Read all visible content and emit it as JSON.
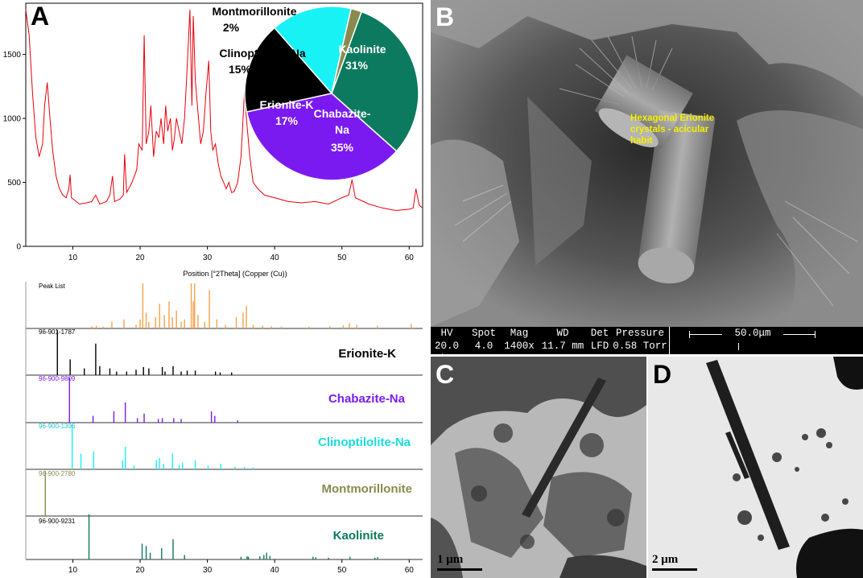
{
  "panels": {
    "a": "A",
    "b": "B",
    "c": "C",
    "d": "D"
  },
  "xrd": {
    "x_axis_label": "Position [°2Theta] (Copper (Cu))",
    "x_ticks": [
      10,
      20,
      30,
      40,
      50,
      60
    ],
    "y_ticks": [
      0,
      500,
      1000,
      1500
    ],
    "x_range": [
      3,
      62
    ],
    "y_range": [
      0,
      1900
    ],
    "line_color": "#e8000b"
  },
  "chart_data": [
    {
      "type": "pie",
      "labels": [
        "Kaolinite",
        "Chabazite-Na",
        "Erionite-K",
        "Clinoptilolite-Na",
        "Montmorillonite"
      ],
      "values": [
        31,
        35,
        17,
        15,
        2
      ],
      "value_labels": [
        "31%",
        "35%",
        "17%",
        "15%",
        "2%"
      ],
      "colors": [
        "#0b7a5e",
        "#7b1af0",
        "#000000",
        "#19f2f5",
        "#8a8a4e"
      ]
    },
    {
      "type": "line",
      "xlabel": "Position [°2Theta] (Copper (Cu))",
      "xlim": [
        3,
        62
      ],
      "ylim": [
        0,
        1900
      ],
      "x": [
        3,
        3.5,
        4,
        4.5,
        5,
        5.5,
        5.8,
        6.2,
        6.6,
        7,
        7.5,
        8,
        8.5,
        9,
        9.4,
        9.6,
        9.8,
        10.5,
        11,
        12,
        12.8,
        13.4,
        14,
        15,
        15.5,
        15.9,
        16.2,
        17,
        17.5,
        17.7,
        18,
        18.8,
        19.5,
        19.8,
        20.3,
        20.6,
        20.9,
        21.3,
        21.6,
        22,
        22.4,
        22.8,
        23.1,
        23.5,
        23.8,
        24.1,
        24.5,
        24.8,
        25.1,
        25.4,
        25.8,
        26.2,
        26.6,
        27,
        27.4,
        27.7,
        27.9,
        28.2,
        28.6,
        29,
        29.4,
        29.8,
        30.2,
        30.5,
        30.8,
        31.2,
        31.6,
        32,
        32.4,
        32.8,
        33.2,
        33.6,
        34,
        34.5,
        35,
        35.5,
        35.8,
        36.3,
        36.8,
        37.5,
        38.5,
        40,
        42,
        44,
        46,
        48,
        50,
        51,
        51.5,
        52,
        54,
        56,
        58,
        60,
        60.6,
        61,
        61.5,
        62
      ],
      "y": [
        1850,
        1650,
        1200,
        850,
        700,
        800,
        1100,
        1280,
        1000,
        750,
        550,
        450,
        400,
        380,
        450,
        560,
        380,
        350,
        330,
        340,
        350,
        400,
        330,
        350,
        400,
        550,
        350,
        370,
        400,
        720,
        420,
        500,
        600,
        800,
        750,
        1650,
        800,
        900,
        1100,
        700,
        900,
        850,
        1000,
        800,
        1100,
        900,
        1000,
        750,
        850,
        1000,
        900,
        800,
        1000,
        1400,
        1850,
        1100,
        1800,
        1300,
        1050,
        800,
        900,
        1200,
        1450,
        900,
        750,
        800,
        650,
        550,
        500,
        450,
        500,
        420,
        430,
        500,
        700,
        1200,
        1000,
        700,
        500,
        450,
        400,
        380,
        350,
        340,
        350,
        330,
        380,
        400,
        520,
        380,
        330,
        300,
        280,
        290,
        300,
        450,
        320,
        300
      ]
    },
    {
      "type": "bar",
      "title": "Peak List",
      "series": [
        {
          "name": "Peak List",
          "color": "#f5a24b",
          "x": [
            12.8,
            13.5,
            14.5,
            15.8,
            17.6,
            19.4,
            20.0,
            20.4,
            20.9,
            21.3,
            22.3,
            22.9,
            23.6,
            24.3,
            24.8,
            25.4,
            26.1,
            26.6,
            27.6,
            27.9,
            28.1,
            28.6,
            29.6,
            30.3,
            31.4,
            32.7,
            34.3,
            35.3,
            35.8,
            36.8,
            38.2,
            39.5,
            41.0,
            45.1,
            48.2,
            50.2,
            51.1,
            52.2,
            55.3,
            60.3
          ],
          "h": [
            0.05,
            0.06,
            0.04,
            0.15,
            0.2,
            0.08,
            0.2,
            1.0,
            0.35,
            0.15,
            0.25,
            0.55,
            0.3,
            0.6,
            0.25,
            0.4,
            0.15,
            0.2,
            1.0,
            0.6,
            1.0,
            0.3,
            0.15,
            0.85,
            0.2,
            0.08,
            0.25,
            0.35,
            0.5,
            0.08,
            0.06,
            0.05,
            0.04,
            0.04,
            0.05,
            0.07,
            0.12,
            0.08,
            0.06,
            0.1
          ]
        },
        {
          "name": "Erionite-K",
          "color": "#000000",
          "x": [
            7.7,
            9.6,
            11.7,
            13.4,
            14.0,
            15.5,
            16.5,
            18.0,
            19.4,
            20.5,
            21.3,
            23.3,
            23.7,
            24.9,
            26.1,
            27.0,
            28.2,
            31.2,
            31.9,
            33.6
          ],
          "h": [
            1.0,
            0.35,
            0.15,
            0.7,
            0.2,
            0.15,
            0.08,
            0.08,
            0.12,
            0.18,
            0.15,
            0.18,
            0.08,
            0.2,
            0.08,
            0.1,
            0.1,
            0.08,
            0.06,
            0.06
          ]
        },
        {
          "name": "Chabazite-Na",
          "color": "#7b1af0",
          "x": [
            9.5,
            13.0,
            16.1,
            17.8,
            19.6,
            20.6,
            22.7,
            23.3,
            25.0,
            26.1,
            30.6,
            31.1,
            34.5
          ],
          "h": [
            1.0,
            0.15,
            0.25,
            0.45,
            0.1,
            0.2,
            0.08,
            0.1,
            0.1,
            0.08,
            0.25,
            0.15,
            0.05
          ]
        },
        {
          "name": "Clinoptilolite-Na",
          "color": "#19f2f5",
          "x": [
            9.9,
            11.2,
            13.1,
            17.4,
            17.8,
            19.1,
            22.4,
            22.9,
            23.5,
            24.8,
            25.8,
            26.3,
            28.2,
            30.1,
            32.0,
            34.1,
            35.5,
            36.8
          ],
          "h": [
            1.0,
            0.35,
            0.4,
            0.2,
            0.5,
            0.08,
            0.2,
            0.25,
            0.12,
            0.35,
            0.1,
            0.15,
            0.2,
            0.08,
            0.12,
            0.06,
            0.05,
            0.04
          ]
        },
        {
          "name": "Montmorillonite",
          "color": "#8a8a4e",
          "x": [
            5.9
          ],
          "h": [
            1.0
          ]
        },
        {
          "name": "Kaolinite",
          "color": "#0b7a5e",
          "x": [
            12.4,
            20.3,
            20.9,
            21.5,
            23.2,
            24.9,
            26.6,
            35.0,
            35.9,
            36.1,
            37.8,
            38.4,
            38.8,
            39.3,
            45.7,
            46.1,
            48.0,
            51.2,
            54.9,
            55.3
          ],
          "h": [
            1.0,
            0.35,
            0.3,
            0.15,
            0.25,
            0.45,
            0.1,
            0.06,
            0.07,
            0.06,
            0.07,
            0.1,
            0.15,
            0.08,
            0.06,
            0.05,
            0.04,
            0.06,
            0.04,
            0.05
          ]
        }
      ],
      "xlim": [
        3,
        62
      ],
      "x_ticks": [
        10,
        20,
        30,
        40,
        50,
        60
      ]
    }
  ],
  "pie": {
    "kaolinite_name": "Kaolinite",
    "kaolinite_pct": "31%",
    "chabazite_name_1": "Chabazite-",
    "chabazite_name_2": "Na",
    "chabazite_pct": "35%",
    "erionite_name": "Erionite-K",
    "erionite_pct": "17%",
    "clino_name": "Clinoptilolite-Na",
    "clino_pct": "15%",
    "mont_name": "Montmorillonite",
    "mont_pct": "2%"
  },
  "references": {
    "peak_list": "Peak List",
    "erionite_code": "96-901-1787",
    "erionite_name": "Erionite-K",
    "chabazite_code": "96-900-9809",
    "chabazite_name": "Chabazite-Na",
    "clino_code": "96-900-1396",
    "clino_name": "Clinoptilolite-Na",
    "mont_code": "96-900-2780",
    "mont_name": "Montmorillonite",
    "kaolinite_code": "96-900-9231",
    "kaolinite_name": "Kaolinite"
  },
  "sem": {
    "annotation_1": "Hexagonal Erionite",
    "annotation_2": "crystals - acicular",
    "annotation_3": "habit",
    "annotation_color": "#f5ef00",
    "hv_label": "HV",
    "hv_value": "20.0 kV",
    "spot_label": "Spot",
    "spot_value": "4.0",
    "mag_label": "Mag",
    "mag_value": "1400x",
    "wd_label": "WD",
    "wd_value": "11.7 mm",
    "det_label": "Det",
    "det_value": "LFD",
    "pressure_label": "Pressure",
    "pressure_value": "0.58  Torr",
    "scale": "50.0μm"
  },
  "tem": {
    "c_scale": "1 μm",
    "d_scale": "2 μm"
  }
}
